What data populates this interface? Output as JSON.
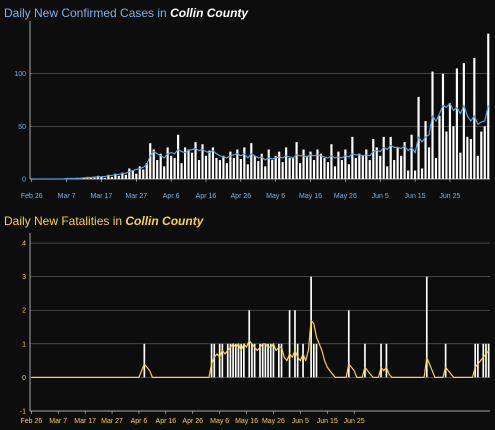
{
  "chart_data": [
    {
      "type": "bar",
      "title": "Daily New Confirmed Cases in",
      "title_county": "Collin County",
      "title_color": "#7fb2e5",
      "bar_color": "#ffffff",
      "line_color": "#5aa0e0",
      "x_tick_labels": [
        "Feb 26",
        "Mar 7",
        "Mar 17",
        "Mar 27",
        "Apr 6",
        "Apr 16",
        "Apr 26",
        "May 6",
        "May 16",
        "May 26",
        "Jun 5",
        "Jun 15",
        "Jun 25"
      ],
      "y_ticks": [
        0,
        50,
        100
      ],
      "ylim": [
        0,
        150
      ],
      "grid": true,
      "start_date": "2020-02-26",
      "series": [
        {
          "kind": "bar",
          "values": [
            0,
            0,
            0,
            0,
            0,
            0,
            0,
            0,
            0,
            0,
            1,
            0,
            0,
            1,
            0,
            1,
            2,
            1,
            2,
            3,
            2,
            1,
            4,
            2,
            5,
            3,
            6,
            4,
            10,
            8,
            5,
            12,
            9,
            15,
            34,
            28,
            18,
            24,
            12,
            30,
            22,
            20,
            42,
            15,
            30,
            28,
            25,
            35,
            18,
            33,
            22,
            27,
            30,
            20,
            18,
            22,
            15,
            26,
            20,
            28,
            19,
            30,
            14,
            34,
            22,
            17,
            24,
            12,
            28,
            18,
            22,
            26,
            16,
            30,
            20,
            20,
            35,
            15,
            28,
            22,
            26,
            18,
            28,
            24,
            20,
            16,
            33,
            12,
            26,
            18,
            28,
            14,
            40,
            20,
            24,
            22,
            28,
            18,
            38,
            30,
            22,
            40,
            12,
            40,
            18,
            30,
            22,
            35,
            8,
            42,
            8,
            78,
            10,
            55,
            30,
            102,
            20,
            60,
            100,
            45,
            72,
            50,
            105,
            25,
            110,
            40,
            38,
            115,
            22,
            45,
            50,
            138
          ]
        },
        {
          "kind": "line",
          "values": [
            0,
            0,
            0,
            0,
            0,
            0,
            0,
            0,
            0,
            0,
            0.5,
            0.5,
            0.5,
            0.7,
            0.8,
            1,
            1.3,
            1.5,
            1.8,
            2,
            2.2,
            2.4,
            3,
            3.5,
            4,
            4.5,
            5,
            5.5,
            7,
            8,
            9,
            10,
            11,
            14,
            22,
            26,
            24,
            22,
            20,
            24,
            25,
            24,
            28,
            26,
            25,
            27,
            28,
            29,
            27,
            28,
            26,
            25,
            27,
            24,
            22,
            21,
            20,
            22,
            23,
            24,
            22,
            24,
            20,
            24,
            22,
            20,
            21,
            18,
            20,
            19,
            20,
            21,
            20,
            22,
            21,
            20,
            23,
            22,
            22,
            21,
            23,
            22,
            23,
            22,
            21,
            20,
            22,
            20,
            21,
            20,
            22,
            21,
            24,
            23,
            23,
            22,
            23,
            22,
            26,
            27,
            26,
            30,
            28,
            32,
            30,
            30,
            29,
            31,
            27,
            30,
            25,
            40,
            35,
            40,
            42,
            60,
            55,
            62,
            70,
            68,
            72,
            65,
            68,
            62,
            70,
            60,
            55,
            60,
            52,
            54,
            55,
            70
          ]
        }
      ]
    },
    {
      "type": "bar",
      "title": "Daily New Fatalities in",
      "title_county": "Collin County",
      "title_color": "#f5d342",
      "bar_color": "#ffffff",
      "line_color": "#f5d342",
      "x_tick_labels": [
        "Feb 26",
        "Mar 7",
        "Mar 17",
        "Mar 27",
        "Apr 6",
        "Apr 16",
        "Apr 26",
        "May 6",
        "May 16",
        "May 26",
        "Jun 5",
        "Jun 15",
        "Jun 25"
      ],
      "y_ticks": [
        -1,
        0,
        1,
        2,
        3,
        4
      ],
      "ylim": [
        -1,
        4.3
      ],
      "grid": true,
      "start_date": "2020-02-26",
      "series": [
        {
          "kind": "bar",
          "values": [
            0,
            0,
            0,
            0,
            0,
            0,
            0,
            0,
            0,
            0,
            0,
            0,
            0,
            0,
            0,
            0,
            0,
            0,
            0,
            0,
            0,
            0,
            0,
            0,
            0,
            0,
            0,
            0,
            0,
            0,
            0,
            0,
            0,
            0,
            0,
            0,
            0,
            0,
            0,
            0,
            0,
            0,
            1,
            0,
            0,
            0,
            0,
            0,
            0,
            0,
            0,
            0,
            0,
            0,
            0,
            0,
            0,
            0,
            0,
            0,
            0,
            0,
            0,
            0,
            0,
            0,
            0,
            1,
            1,
            0,
            1,
            1,
            0,
            1,
            1,
            1,
            1,
            1,
            1,
            1,
            0,
            2,
            1,
            1,
            0,
            1,
            1,
            1,
            1,
            1,
            1,
            0,
            1,
            1,
            0,
            0,
            2,
            0,
            2,
            1,
            0,
            1,
            0,
            0,
            3,
            1,
            1,
            0,
            0,
            0,
            0,
            0,
            0,
            0,
            0,
            0,
            0,
            0,
            2,
            0,
            0,
            0,
            0,
            0,
            1,
            0,
            0,
            0,
            0,
            0,
            1,
            0,
            1,
            0,
            0,
            0,
            0,
            0,
            0,
            0,
            0,
            0,
            0,
            0,
            0,
            0,
            0,
            3,
            0,
            0,
            0,
            0,
            0,
            0,
            1,
            0,
            0,
            0,
            0,
            0,
            0,
            0,
            0,
            0,
            0,
            1,
            1,
            0,
            1,
            1,
            1
          ]
        },
        {
          "kind": "line",
          "values": [
            0,
            0,
            0,
            0,
            0,
            0,
            0,
            0,
            0,
            0,
            0,
            0,
            0,
            0,
            0,
            0,
            0,
            0,
            0,
            0,
            0,
            0,
            0,
            0,
            0,
            0,
            0,
            0,
            0,
            0,
            0,
            0,
            0,
            0,
            0,
            0,
            0,
            0,
            0,
            0,
            0,
            0.2,
            0.4,
            0.3,
            0.2,
            0,
            0,
            0,
            0,
            0,
            0,
            0,
            0,
            0,
            0,
            0,
            0,
            0,
            0,
            0,
            0,
            0,
            0,
            0,
            0,
            0,
            0,
            0.4,
            0.6,
            0.7,
            0.6,
            0.8,
            0.7,
            0.8,
            0.9,
            1,
            0.9,
            1,
            0.8,
            1,
            0.9,
            1.1,
            1,
            0.9,
            0.8,
            0.9,
            1,
            1,
            0.9,
            0.9,
            1,
            0.8,
            0.9,
            0.9,
            0.6,
            0.5,
            0.7,
            0.6,
            0.8,
            0.6,
            0.5,
            0.7,
            0.5,
            0.8,
            1.7,
            1.6,
            1.2,
            1,
            0.8,
            0.5,
            0.3,
            0.2,
            0.1,
            0,
            0,
            0,
            0,
            0,
            0.4,
            0.3,
            0.2,
            0,
            0,
            0,
            0.3,
            0.2,
            0.1,
            0,
            0,
            0,
            0.3,
            0.2,
            0.3,
            0.1,
            0,
            0,
            0,
            0,
            0,
            0,
            0,
            0,
            0,
            0,
            0,
            0,
            0,
            0.6,
            0.4,
            0.2,
            0,
            0,
            0,
            0,
            0.3,
            0.2,
            0.1,
            0,
            0,
            0,
            0,
            0,
            0,
            0,
            0,
            0.3,
            0.4,
            0.5,
            0.6,
            0.7,
            0.8
          ]
        }
      ]
    }
  ]
}
